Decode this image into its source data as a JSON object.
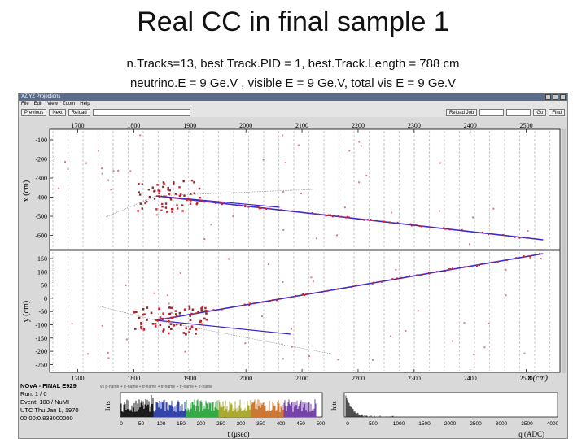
{
  "slide": {
    "title": "Real CC in final sample 1",
    "line1": "n.Tracks=13, best.Track.PID = 1, best.Track.Length = 788 cm",
    "line2": "neutrino.E = 9 Ge.V , visible E = 9 Ge.V, total vis E = 9 Ge.V"
  },
  "window": {
    "title": "XZ/YZ Projections",
    "menu": [
      "File",
      "Edit",
      "View",
      "Zoom",
      "Help"
    ],
    "toolbar": [
      "Previous",
      "Next",
      "Reload"
    ],
    "right_controls": [
      "Reload Job",
      "Go",
      "Find"
    ]
  },
  "xz_view": {
    "x_ticks": [
      "1700",
      "1800",
      "1900",
      "2000",
      "2100",
      "2200",
      "2300",
      "2400",
      "2500"
    ],
    "y_ticks": [
      "-100",
      "-200",
      "-300",
      "-400",
      "-500",
      "-600"
    ],
    "y_label": "x (cm)"
  },
  "yz_view": {
    "x_ticks": [
      "1700",
      "1800",
      "1900",
      "2000",
      "2100",
      "2200",
      "2300",
      "2400",
      "2500"
    ],
    "y_ticks": [
      "150",
      "100",
      "50",
      "0",
      "-50",
      "-100",
      "-150",
      "-200",
      "-250"
    ],
    "y_label": "y (cm)",
    "x_label": "z (cm)"
  },
  "event_info": {
    "experiment": "NOvA - FINAL E929",
    "run": "Run: 1 / 0",
    "event": "Event: 108 / NuMI",
    "utc": "UTC Thu Jan 1, 1970",
    "time": "00:00:0.833000000"
  },
  "legend_strip": "vs p-name + tr-name + tr-name + tr-name + tr-name + tr-name",
  "time_hist": {
    "y_label": "hits",
    "x_label": "t (μsec)",
    "ticks": [
      "0",
      "50",
      "100",
      "150",
      "200",
      "250",
      "300",
      "350",
      "400",
      "450",
      "500"
    ]
  },
  "adc_hist": {
    "y_label": "hits",
    "x_label": "q (ADC)",
    "ticks": [
      "0",
      "500",
      "1000",
      "1500",
      "2000",
      "2500",
      "3000",
      "3500",
      "4000"
    ]
  },
  "colors": {
    "track": "#3b2bd1",
    "hit": "#d41f2a",
    "panel_bg": "#d9d9d9"
  }
}
